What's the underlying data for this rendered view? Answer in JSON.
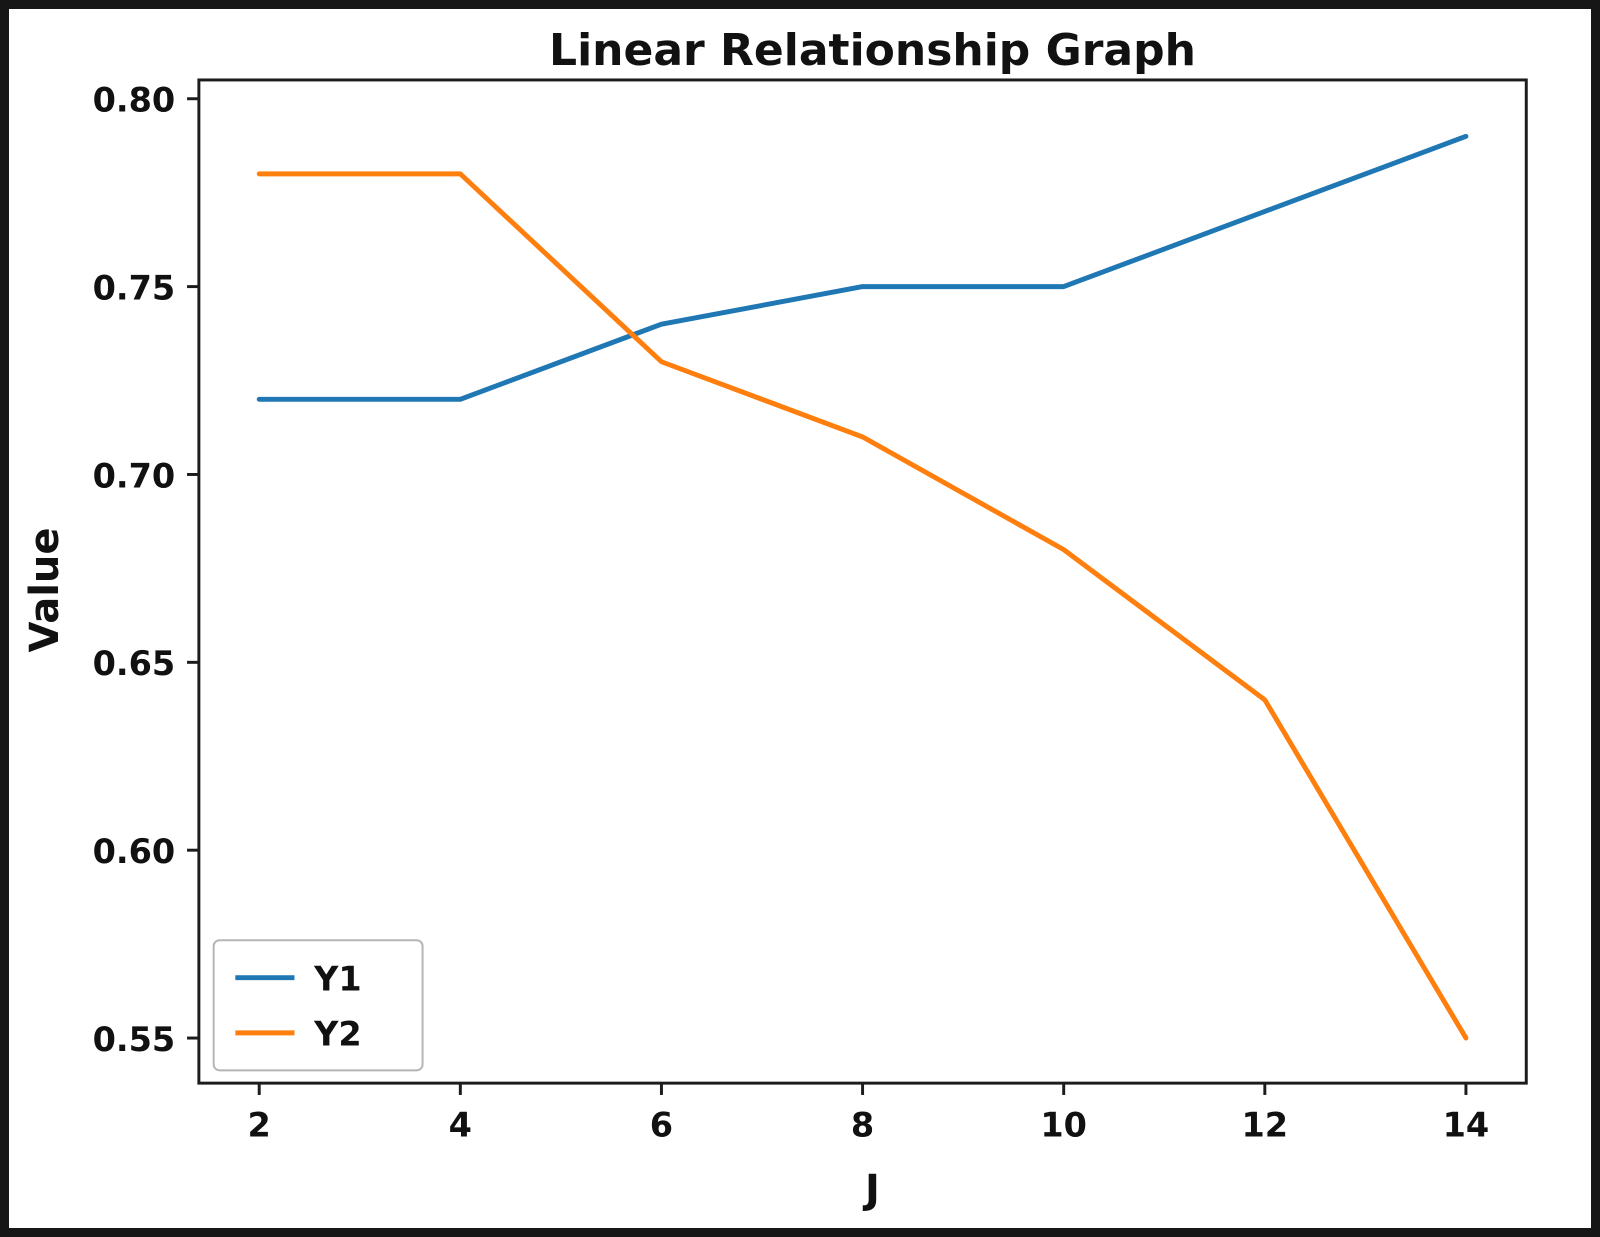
{
  "chart_data": {
    "type": "line",
    "title": "Linear Relationship Graph",
    "xlabel": "J",
    "ylabel": "Value",
    "x": [
      2,
      4,
      6,
      8,
      10,
      12,
      14
    ],
    "series": [
      {
        "name": "Y1",
        "color": "#1f77b4",
        "values": [
          0.72,
          0.72,
          0.74,
          0.75,
          0.75,
          0.77,
          0.79
        ]
      },
      {
        "name": "Y2",
        "color": "#ff7f0e",
        "values": [
          0.78,
          0.78,
          0.73,
          0.71,
          0.68,
          0.64,
          0.55
        ]
      }
    ],
    "xlim": [
      1.4,
      14.6
    ],
    "ylim": [
      0.538,
      0.805
    ],
    "xticks": [
      2,
      4,
      6,
      8,
      10,
      12,
      14
    ],
    "yticks": [
      0.55,
      0.6,
      0.65,
      0.7,
      0.75,
      0.8
    ],
    "grid": false,
    "legend": {
      "position": "lower left",
      "entries": [
        "Y1",
        "Y2"
      ]
    }
  },
  "frame": {
    "axes_color": "#1c1c1c",
    "legend_border_color": "#b5b5b5",
    "text_color": "#111111"
  }
}
